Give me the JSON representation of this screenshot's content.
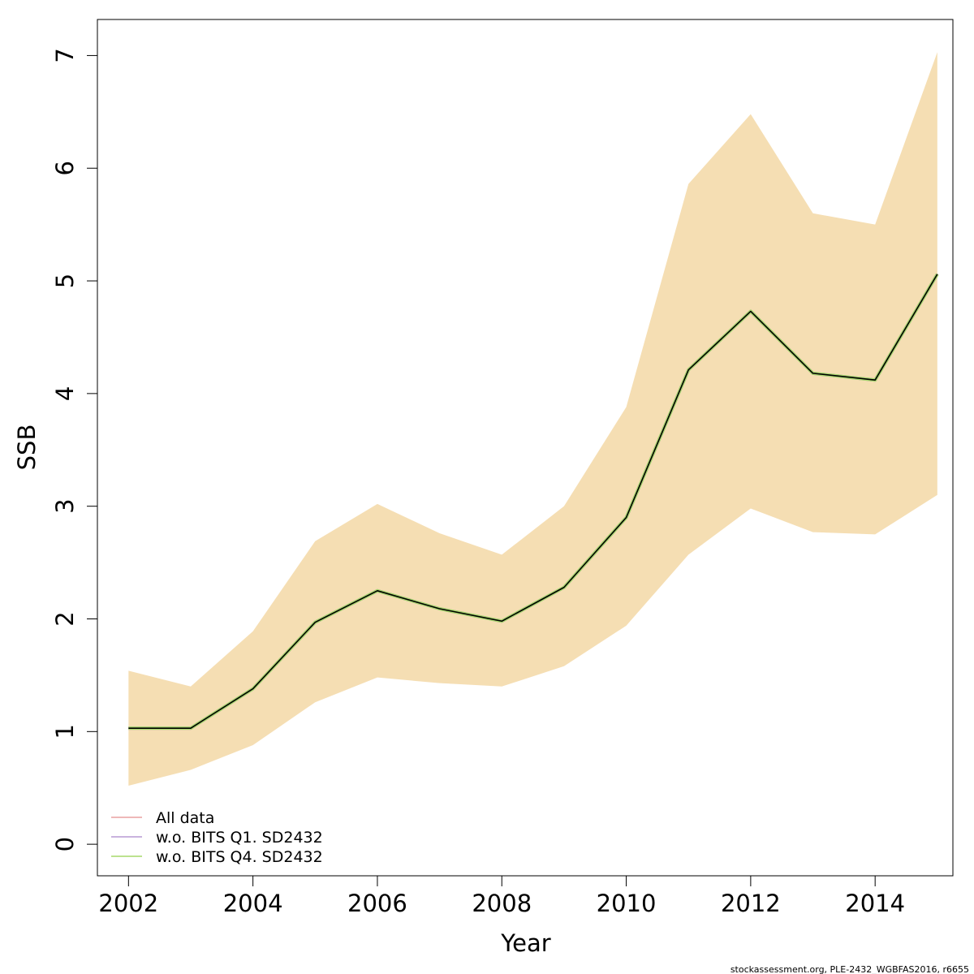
{
  "chart_data": {
    "type": "line",
    "xlabel": "Year",
    "ylabel": "SSB",
    "xlim": [
      2001.5,
      2015.25
    ],
    "ylim": [
      -0.28,
      7.32
    ],
    "xticks": [
      2002,
      2004,
      2006,
      2008,
      2010,
      2012,
      2014
    ],
    "yticks": [
      0,
      1,
      2,
      3,
      4,
      5,
      6,
      7
    ],
    "grid": false,
    "legend_position": "bottom-left",
    "x": [
      2002,
      2003,
      2004,
      2005,
      2006,
      2007,
      2008,
      2009,
      2010,
      2011,
      2012,
      2013,
      2014,
      2015
    ],
    "band": {
      "color": "#F5DEB3",
      "lower": [
        0.52,
        0.66,
        0.88,
        1.26,
        1.48,
        1.43,
        1.4,
        1.58,
        1.94,
        2.57,
        2.98,
        2.77,
        2.75,
        3.1
      ],
      "upper": [
        1.54,
        1.4,
        1.89,
        2.69,
        3.02,
        2.76,
        2.57,
        3.0,
        3.88,
        5.86,
        6.48,
        5.6,
        5.5,
        7.03
      ]
    },
    "main_line": {
      "color": "#000000",
      "values": [
        1.03,
        1.03,
        1.38,
        1.97,
        2.25,
        2.09,
        1.98,
        2.28,
        2.9,
        4.21,
        4.73,
        4.18,
        4.12,
        5.06
      ]
    },
    "series": [
      {
        "name": "All data",
        "color": "#E8A0A0",
        "values": [
          1.03,
          1.03,
          1.38,
          1.97,
          2.25,
          2.09,
          1.98,
          2.28,
          2.9,
          4.21,
          4.73,
          4.18,
          4.12,
          5.06
        ]
      },
      {
        "name": "w.o. BITS Q1. SD2432",
        "color": "#B79AD4",
        "values": [
          1.03,
          1.03,
          1.38,
          1.97,
          2.25,
          2.09,
          1.98,
          2.28,
          2.9,
          4.21,
          4.73,
          4.18,
          4.12,
          5.06
        ]
      },
      {
        "name": "w.o. BITS Q4. SD2432",
        "color": "#A6D96A",
        "values": [
          1.03,
          1.03,
          1.38,
          1.97,
          2.25,
          2.09,
          1.98,
          2.28,
          2.9,
          4.21,
          4.73,
          4.18,
          4.12,
          5.06
        ]
      }
    ]
  },
  "footer": "stockassessment.org, PLE-2432_WGBFAS2016, r6655"
}
